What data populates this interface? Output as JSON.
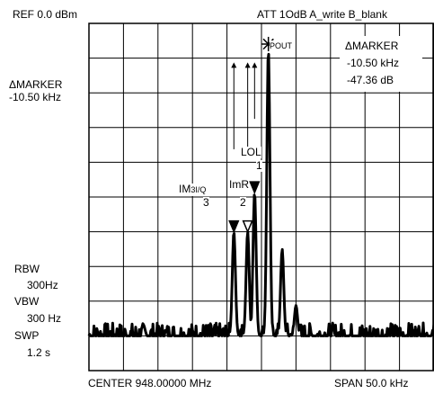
{
  "header": {
    "ref": "REF 0.0 dBm",
    "att": "ATT 1OdB  A_write B_blank"
  },
  "left_panel": {
    "delta_marker": "ΔMARKER",
    "delta_freq": "-10.50 kHz",
    "rbw_label": "RBW",
    "rbw_value": "300Hz",
    "vbw_label": "VBW",
    "vbw_value": "300 Hz",
    "swp_label": "SWP",
    "swp_value": "1.2 s"
  },
  "marker_box": {
    "title": "ΔMARKER",
    "freq": "-10.50 kHz",
    "level": "-47.36 dB"
  },
  "footer": {
    "center": "CENTER  948.00000 MHz",
    "span": "SPAN 50.0 kHz"
  },
  "chart_data": {
    "type": "line",
    "grid": true,
    "grid_divisions": {
      "x": 10,
      "y": 10
    },
    "ylim_db": [
      -80,
      0
    ],
    "x_span_khz": 50.0,
    "center_mhz": 948.0,
    "noise_floor_db": -72,
    "peaks": [
      {
        "name": "POUT",
        "marker": "",
        "offset_khz": 1.0,
        "level_db": -6,
        "symbol": "star"
      },
      {
        "name": "LOL",
        "marker": "1",
        "offset_khz": -1.0,
        "level_db": -39,
        "symbol": "filled-triangle"
      },
      {
        "name": "ImR",
        "marker": "2",
        "offset_khz": -2.0,
        "level_db": -48,
        "symbol": "open-triangle"
      },
      {
        "name": "IM3I/Q",
        "marker": "3",
        "offset_khz": -4.0,
        "level_db": -48,
        "symbol": "filled-triangle"
      }
    ],
    "secondary_peaks": [
      {
        "offset_khz": 3.0,
        "level_db": -52
      },
      {
        "offset_khz": 5.0,
        "level_db": -65
      }
    ]
  },
  "annotations": {
    "pout": "POUT",
    "lol": "LOL",
    "lol_num": "1",
    "imr": "ImR",
    "imr_num": "2",
    "im3_main": "IM",
    "im3_sub": "3I/Q",
    "im3_num": "3"
  }
}
